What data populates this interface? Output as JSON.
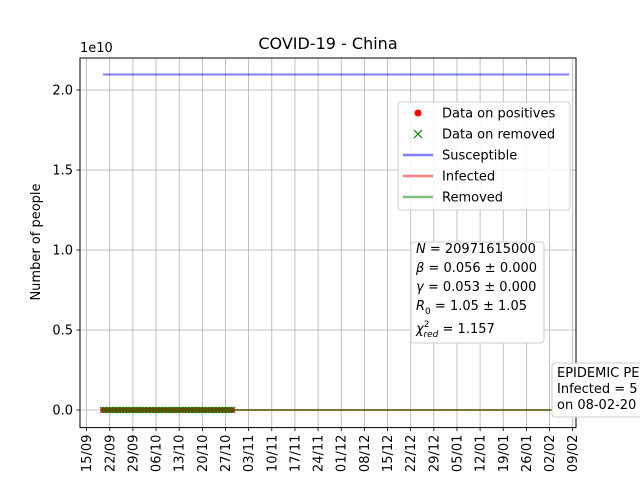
{
  "chart_data": {
    "type": "line",
    "title": "COVID-19 - China",
    "xlabel": "",
    "ylabel": "Number of people",
    "y_offset_text": "1e10",
    "y_scale_factor": 10000000000,
    "ylim": [
      -0.11,
      2.2
    ],
    "yticks": [
      0.0,
      0.5,
      1.0,
      1.5,
      2.0
    ],
    "ytick_labels": [
      "0.0",
      "0.5",
      "1.0",
      "1.5",
      "2.0"
    ],
    "x_range": [
      "2020-09-13",
      "2021-02-10"
    ],
    "xticks": [
      "2020-09-15",
      "2020-09-22",
      "2020-09-29",
      "2020-10-06",
      "2020-10-13",
      "2020-10-20",
      "2020-10-27",
      "2020-11-03",
      "2020-11-10",
      "2020-11-17",
      "2020-11-24",
      "2020-12-01",
      "2020-12-08",
      "2020-12-15",
      "2020-12-22",
      "2020-12-29",
      "2021-01-05",
      "2021-01-12",
      "2021-01-19",
      "2021-01-26",
      "2021-02-02",
      "2021-02-09"
    ],
    "xtick_labels": [
      "15/09",
      "22/09",
      "29/09",
      "06/10",
      "13/10",
      "20/10",
      "27/10",
      "03/11",
      "10/11",
      "17/11",
      "24/11",
      "01/12",
      "08/12",
      "15/12",
      "22/12",
      "29/12",
      "05/01",
      "12/01",
      "19/01",
      "26/01",
      "02/02",
      "09/02"
    ],
    "grid": true,
    "legend_position": "upper right",
    "colors": {
      "data_positives": "#ff0000",
      "data_removed": "#008000",
      "susceptible": "#0000ff",
      "infected": "#ff0000",
      "removed": "#008000"
    },
    "observed_range": [
      "2020-09-20",
      "2020-10-29"
    ],
    "series": [
      {
        "name": "Susceptible",
        "kind": "line",
        "x": [
          "2020-09-20",
          "2021-02-08"
        ],
        "values": [
          2.097,
          2.097
        ]
      },
      {
        "name": "Infected",
        "kind": "line",
        "x": [
          "2020-09-20",
          "2021-02-08"
        ],
        "values": [
          0.0,
          0.0
        ]
      },
      {
        "name": "Removed",
        "kind": "line",
        "x": [
          "2020-09-20",
          "2021-02-08"
        ],
        "values": [
          0.0,
          0.0
        ]
      },
      {
        "name": "Data on positives",
        "kind": "marker",
        "marker": "o",
        "values_constant": 0.0
      },
      {
        "name": "Data on removed",
        "kind": "marker",
        "marker": "x",
        "values_constant": 0.0
      }
    ],
    "legend": [
      "Data on positives",
      "Data on removed",
      "Susceptible",
      "Infected",
      "Removed"
    ],
    "params_box": [
      {
        "sym": "N",
        "sub": "",
        "sup": "",
        "rhs": " = 20971615000"
      },
      {
        "sym": "β",
        "sub": "",
        "sup": "",
        "rhs": " = 0.056 ± 0.000"
      },
      {
        "sym": "γ",
        "sub": "",
        "sup": "",
        "rhs": " = 0.053 ± 0.000"
      },
      {
        "sym": "R",
        "sub": "0",
        "sup": "",
        "rhs": " = 1.05 ± 1.05"
      },
      {
        "sym": "χ",
        "sub": "red",
        "sup": "2",
        "rhs": " = 1.157"
      }
    ],
    "peak_box": [
      "EPIDEMIC PE",
      "Infected = 5",
      "on 08-02-20"
    ]
  }
}
